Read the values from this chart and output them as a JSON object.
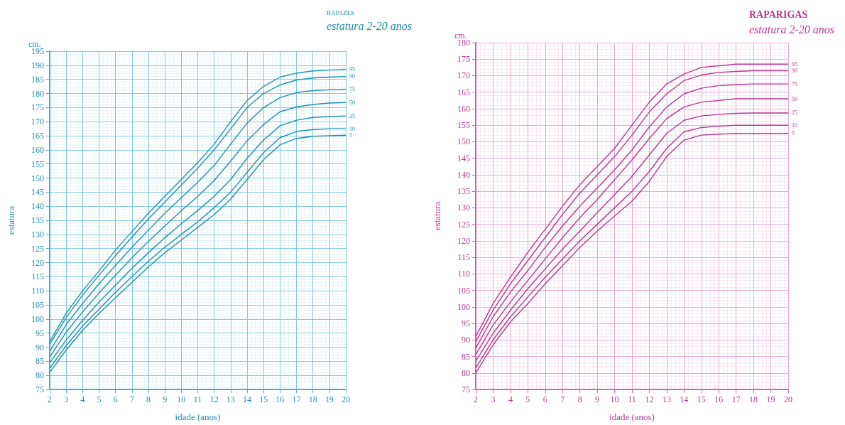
{
  "chart_data": [
    {
      "type": "line",
      "title": "RAPAZES",
      "subtitle": "estatura 2-20 anos",
      "xlabel": "idade (anos)",
      "ylabel": "estatura",
      "annotations": [
        "cm."
      ],
      "x": [
        2,
        3,
        4,
        5,
        6,
        7,
        8,
        9,
        10,
        11,
        12,
        13,
        14,
        15,
        16,
        17,
        18,
        19,
        20
      ],
      "xlim": [
        2,
        20
      ],
      "xticks": [
        2,
        3,
        4,
        5,
        6,
        7,
        8,
        9,
        10,
        11,
        12,
        13,
        14,
        15,
        16,
        17,
        18,
        19,
        20
      ],
      "ylim": [
        75,
        195
      ],
      "yticks": [
        75,
        80,
        85,
        90,
        95,
        100,
        105,
        110,
        115,
        120,
        125,
        130,
        135,
        140,
        145,
        150,
        155,
        160,
        165,
        170,
        175,
        180,
        185,
        190,
        195
      ],
      "grid": true,
      "marker": "none",
      "line_style": "solid",
      "series": [
        {
          "name": "95",
          "color": "#1f8fae",
          "values": [
            92,
            102,
            110,
            117,
            124.5,
            131,
            137.5,
            143.5,
            149.5,
            155.5,
            162,
            170,
            177.5,
            182.5,
            185.8,
            187.2,
            188,
            188.3,
            188.5
          ]
        },
        {
          "name": "90",
          "color": "#1f8fae",
          "values": [
            91,
            100.5,
            108.5,
            115.5,
            122.5,
            129,
            135.5,
            141.5,
            147.5,
            153.5,
            160,
            167.5,
            175,
            180,
            183,
            184.8,
            185.5,
            185.8,
            186
          ]
        },
        {
          "name": "75",
          "color": "#1f8fae",
          "values": [
            88.5,
            98,
            105.5,
            112.5,
            119,
            125.5,
            131.5,
            137.5,
            143,
            148.5,
            154.5,
            162,
            169.5,
            175,
            178.5,
            180.3,
            181,
            181.3,
            181.5
          ]
        },
        {
          "name": "50",
          "color": "#1f8fae",
          "values": [
            86.5,
            95.3,
            102.5,
            109.2,
            115.5,
            121.7,
            127.5,
            133,
            138.4,
            143.5,
            149.1,
            156,
            163.2,
            169,
            173.5,
            175.2,
            176.1,
            176.6,
            176.8
          ]
        },
        {
          "name": "25",
          "color": "#1f8fae",
          "values": [
            84.5,
            92.5,
            99.5,
            106,
            112,
            118,
            123.5,
            128.8,
            133.8,
            138.5,
            143.5,
            149.5,
            157,
            163.5,
            168.5,
            170.5,
            171.5,
            171.8,
            172
          ]
        },
        {
          "name": "10",
          "color": "#1f8fae",
          "values": [
            82.5,
            90.5,
            97.5,
            103.5,
            109.5,
            115,
            120.5,
            125.5,
            130,
            134.5,
            139.5,
            145,
            152,
            159,
            164.3,
            166.5,
            167.2,
            167.5,
            167.5
          ]
        },
        {
          "name": "5",
          "color": "#1f8fae",
          "values": [
            81,
            89,
            96,
            102,
            107.5,
            113,
            118.5,
            123.5,
            128,
            132.5,
            137,
            142.5,
            149.5,
            156.5,
            161.8,
            164,
            164.8,
            165,
            165.2
          ]
        }
      ]
    },
    {
      "type": "line",
      "title": "RAPARIGAS",
      "subtitle": "estatura 2-20 anos",
      "xlabel": "idade (anos)",
      "ylabel": "estatura",
      "annotations": [
        "cm."
      ],
      "x": [
        2,
        3,
        4,
        5,
        6,
        7,
        8,
        9,
        10,
        11,
        12,
        13,
        14,
        15,
        16,
        17,
        18,
        19,
        20
      ],
      "xlim": [
        2,
        20
      ],
      "xticks": [
        2,
        3,
        4,
        5,
        6,
        7,
        8,
        9,
        10,
        11,
        12,
        13,
        14,
        15,
        16,
        17,
        18,
        19,
        20
      ],
      "ylim": [
        75,
        180
      ],
      "yticks": [
        75,
        80,
        85,
        90,
        95,
        100,
        105,
        110,
        115,
        120,
        125,
        130,
        135,
        140,
        145,
        150,
        155,
        160,
        165,
        170,
        175,
        180
      ],
      "grid": true,
      "marker": "none",
      "line_style": "solid",
      "series": [
        {
          "name": "95",
          "color": "#b8368f",
          "values": [
            91,
            101,
            109,
            116.5,
            123.5,
            130.5,
            137,
            142.5,
            148,
            155,
            162,
            167.5,
            170.5,
            172.5,
            173,
            173.5,
            173.5,
            173.5,
            173.5
          ]
        },
        {
          "name": "90",
          "color": "#b8368f",
          "values": [
            89.5,
            99,
            107,
            114,
            121,
            128,
            134.5,
            140,
            145.5,
            152,
            159,
            164.5,
            168.5,
            170.2,
            171,
            171.3,
            171.5,
            171.5,
            171.5
          ]
        },
        {
          "name": "75",
          "color": "#b8368f",
          "values": [
            87.5,
            97,
            104.5,
            111,
            118,
            124.5,
            130.5,
            136,
            141.5,
            147.5,
            154.5,
            160.5,
            164.5,
            166.2,
            167,
            167.3,
            167.5,
            167.5,
            167.5
          ]
        },
        {
          "name": "50",
          "color": "#b8368f",
          "values": [
            85.5,
            94.5,
            101.5,
            108,
            114.5,
            121,
            127,
            132.5,
            138.5,
            144.5,
            151,
            157,
            160.5,
            162,
            162.5,
            163,
            163,
            163,
            163
          ]
        },
        {
          "name": "25",
          "color": "#b8368f",
          "values": [
            83.5,
            92,
            99,
            105.5,
            111.5,
            117.5,
            123,
            128.5,
            134,
            139.5,
            146,
            152.5,
            156.5,
            157.8,
            158.3,
            158.6,
            158.7,
            158.7,
            158.7
          ]
        },
        {
          "name": "10",
          "color": "#b8368f",
          "values": [
            81.5,
            90,
            97,
            103,
            109,
            114.5,
            120,
            125,
            130,
            135,
            141,
            148,
            153,
            154.3,
            154.7,
            155,
            155,
            155,
            155
          ]
        },
        {
          "name": "5",
          "color": "#b8368f",
          "values": [
            80,
            88.5,
            95.5,
            101,
            107,
            112.5,
            118,
            123,
            127.5,
            132,
            138,
            145.5,
            150.5,
            152,
            152.3,
            152.5,
            152.5,
            152.5,
            152.5
          ]
        }
      ]
    }
  ]
}
